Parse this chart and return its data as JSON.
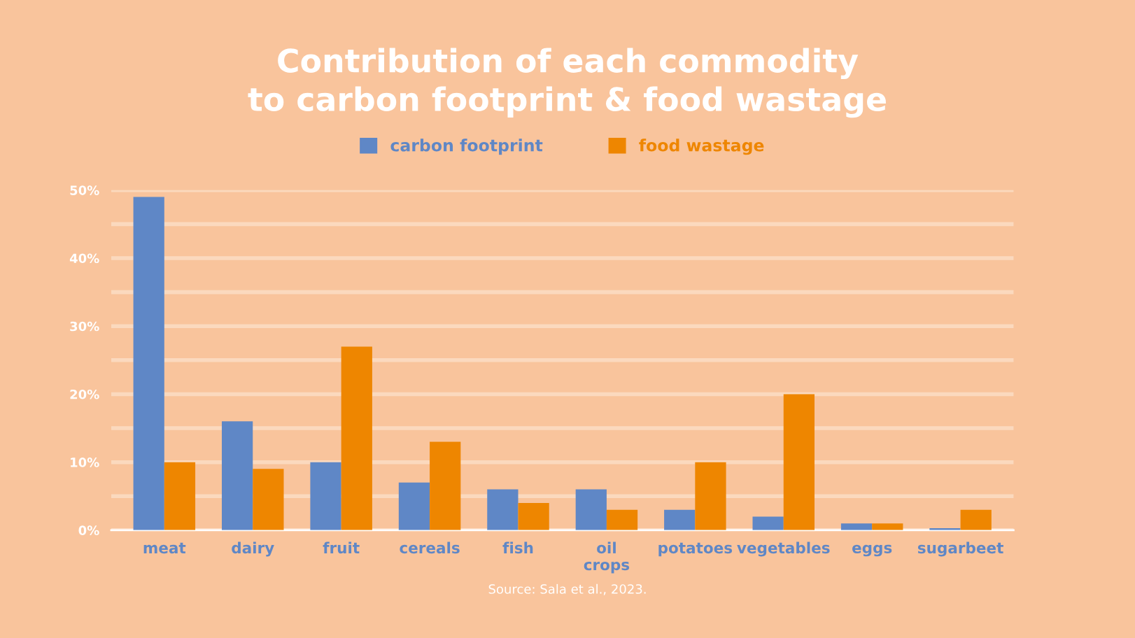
{
  "chart_data": {
    "type": "bar",
    "title": "Contribution of each commodity\nto carbon footprint & food wastage",
    "categories": [
      "meat",
      "dairy",
      "fruit",
      "cereals",
      "fish",
      "oil\ncrops",
      "potatoes",
      "vegetables",
      "eggs",
      "sugarbeet"
    ],
    "series": [
      {
        "name": "carbon footprint",
        "color": "#5f87c6",
        "values": [
          49,
          16,
          10,
          7,
          6,
          6,
          3,
          2,
          1,
          0.3
        ]
      },
      {
        "name": "food wastage",
        "color": "#ee8600",
        "values": [
          10,
          9,
          27,
          13,
          4,
          3,
          10,
          20,
          1,
          3
        ]
      }
    ],
    "ylim": [
      0,
      50
    ],
    "yticks": [
      {
        "value": 0,
        "label": "0%"
      },
      {
        "value": 5,
        "label": null
      },
      {
        "value": 10,
        "label": "10%"
      },
      {
        "value": 15,
        "label": null
      },
      {
        "value": 20,
        "label": "20%"
      },
      {
        "value": 25,
        "label": null
      },
      {
        "value": 30,
        "label": "30%"
      },
      {
        "value": 35,
        "label": null
      },
      {
        "value": 40,
        "label": "40%"
      },
      {
        "value": 45,
        "label": null
      },
      {
        "value": 50,
        "label": "50%"
      }
    ],
    "grid": "y",
    "legend": "top",
    "annotations": [
      "Source: Sala et al., 2023."
    ]
  }
}
